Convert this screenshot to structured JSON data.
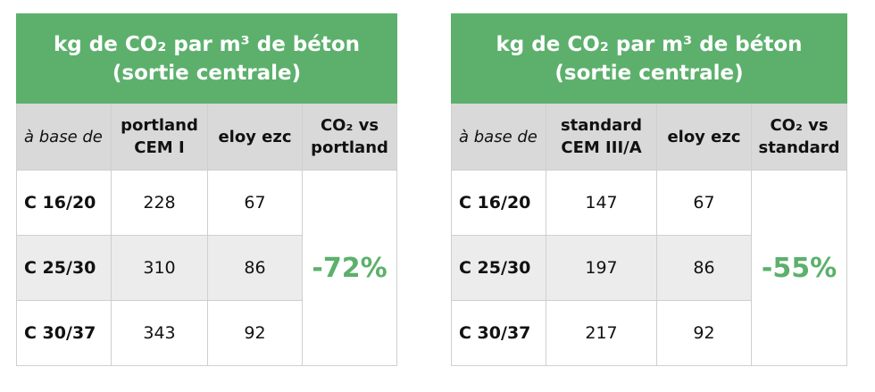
{
  "tables": [
    {
      "title": "kg de CO₂ par m³ de béton",
      "subtitle": "(sortie centrale)",
      "headers": [
        "à base de",
        "portland CEM I",
        "eloy ezc",
        "CO₂ vs portland"
      ],
      "rows": [
        [
          "C 16/20",
          228,
          67
        ],
        [
          "C 25/30",
          310,
          86
        ],
        [
          "C 30/37",
          343,
          92
        ]
      ],
      "reduction": "-72%"
    },
    {
      "title": "kg de CO₂ par m³ de béton",
      "subtitle": "(sortie centrale)",
      "headers": [
        "à base de",
        "standard CEM III/A",
        "eloy ezc",
        "CO₂ vs standard"
      ],
      "rows": [
        [
          "C 16/20",
          147,
          67
        ],
        [
          "C 25/30",
          197,
          86
        ],
        [
          "C 30/37",
          217,
          92
        ]
      ],
      "reduction": "-55%"
    }
  ]
}
